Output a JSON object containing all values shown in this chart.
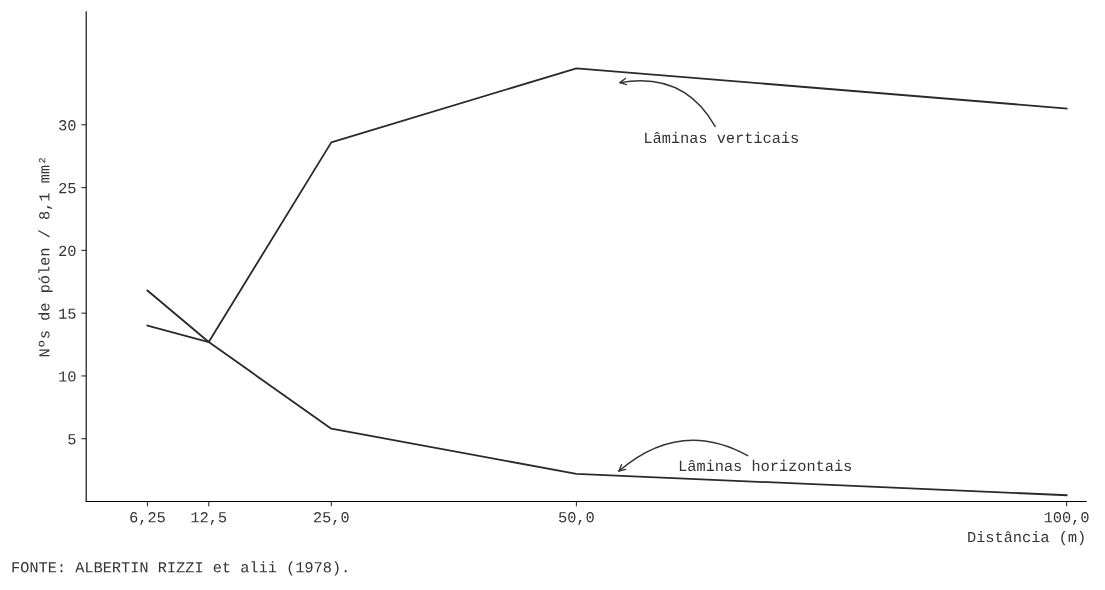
{
  "chart_data": {
    "type": "line",
    "xlabel": "Distância (m)",
    "ylabel": "Nºs de pólen / 8,1 mm²",
    "xlim": [
      0,
      102
    ],
    "ylim": [
      0,
      39
    ],
    "xticks": [
      {
        "value": 6.25,
        "label": "6,25"
      },
      {
        "value": 12.5,
        "label": "12,5"
      },
      {
        "value": 25,
        "label": "25,0"
      },
      {
        "value": 50,
        "label": "50,0"
      },
      {
        "value": 100,
        "label": "100,0"
      }
    ],
    "yticks": [
      5,
      10,
      15,
      20,
      25,
      30
    ],
    "x": [
      6.25,
      12.5,
      25,
      50,
      100
    ],
    "series": [
      {
        "name": "Lâminas verticais",
        "color": "#2a2a2a",
        "values": [
          16.8,
          12.7,
          28.6,
          34.5,
          31.3
        ]
      },
      {
        "name": "Lâminas horizontais",
        "color": "#2a2a2a",
        "values": [
          14.0,
          12.7,
          5.8,
          2.2,
          0.5
        ]
      }
    ],
    "annotations": [
      "FONTE: ALBERTIN RIZZI et alii (1978)."
    ],
    "grid": false,
    "legend": false,
    "marker": "none",
    "line_style": "solid"
  }
}
